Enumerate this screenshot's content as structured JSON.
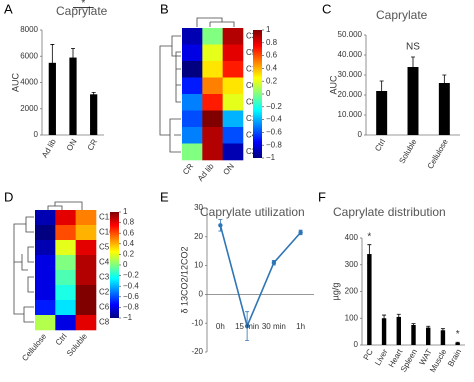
{
  "chart_data": [
    {
      "type": "bar",
      "panel": "A",
      "title": "Caprylate",
      "ylabel": "AUC",
      "categories": [
        "Ad lib",
        "ON",
        "CR"
      ],
      "values": [
        5500,
        5900,
        3100
      ],
      "errors": [
        1400,
        700,
        150
      ],
      "color": "#000000",
      "ylim": [
        0,
        8000
      ],
      "yticks": [
        0,
        2000,
        4000,
        6000,
        8000
      ],
      "annotations": [
        "*"
      ]
    },
    {
      "type": "heatmap",
      "panel": "B",
      "columns": [
        "CR",
        "Ad lib",
        "ON"
      ],
      "rows": [
        "C3",
        "C5",
        "C12",
        "C6",
        "C8",
        "C10",
        "C4",
        "C2"
      ],
      "matrix": [
        [
          -0.9,
          0.0,
          0.9
        ],
        [
          -0.8,
          0.2,
          0.8
        ],
        [
          -1,
          0.3,
          0.7
        ],
        [
          -0.7,
          0.5,
          0.3
        ],
        [
          -0.5,
          0.7,
          0.2
        ],
        [
          -0.6,
          1,
          -0.4
        ],
        [
          -0.5,
          0.9,
          -0.6
        ],
        [
          0.0,
          0.9,
          -0.9
        ]
      ],
      "clim": [
        -1,
        1
      ],
      "cticks": [
        1,
        0.8,
        0.6,
        0.4,
        0.2,
        0,
        {
          "value": -0.2,
          "label": "−0.2"
        },
        {
          "value": -0.4,
          "label": "−0.4"
        },
        {
          "value": -0.6,
          "label": "−0.6"
        },
        {
          "value": -0.8,
          "label": "−0.8"
        },
        {
          "value": -1,
          "label": "−1"
        }
      ]
    },
    {
      "type": "bar",
      "panel": "C",
      "title": "Caprylate",
      "ylabel": "AUC",
      "categories": [
        "Ctrl",
        "Soluble",
        "Cellulose"
      ],
      "values": [
        22000,
        34000,
        26000
      ],
      "errors": [
        5000,
        5000,
        4000
      ],
      "color": "#000000",
      "ylim": [
        0,
        50000
      ],
      "yticks": [
        0,
        {
          "value": 10000,
          "label": "10.000"
        },
        {
          "value": 20000,
          "label": "20.000"
        },
        {
          "value": 30000,
          "label": "30.000"
        },
        {
          "value": 40000,
          "label": "40.000"
        },
        {
          "value": 50000,
          "label": "50.000"
        }
      ],
      "annotations": [
        "NS"
      ]
    },
    {
      "type": "heatmap",
      "panel": "D",
      "columns": [
        "Cellulose",
        "Ctrl",
        "Soluble"
      ],
      "rows": [
        "C12",
        "C10",
        "C5",
        "C4",
        "C3",
        "C2",
        "C6",
        "C8"
      ],
      "matrix": [
        [
          -0.9,
          0.8,
          0.5
        ],
        [
          -1,
          0.6,
          0.4
        ],
        [
          -0.9,
          0.2,
          0.8
        ],
        [
          -0.8,
          0.0,
          0.9
        ],
        [
          -0.8,
          -0.1,
          0.9
        ],
        [
          -0.8,
          -0.2,
          1
        ],
        [
          -0.7,
          -0.3,
          1
        ],
        [
          0.1,
          -0.8,
          0.8
        ]
      ],
      "clim": [
        -1,
        1
      ],
      "cticks": [
        1,
        0.8,
        0.6,
        0.4,
        0.2,
        0,
        {
          "value": -0.2,
          "label": "−0.2"
        },
        {
          "value": -0.4,
          "label": "−0.4"
        },
        {
          "value": -0.6,
          "label": "−0.6"
        },
        {
          "value": -0.8,
          "label": "−0.8"
        },
        {
          "value": -1,
          "label": "−1"
        }
      ]
    },
    {
      "type": "line",
      "panel": "E",
      "title": "Caprylate utilization",
      "ylabel": "δ 13CO2/12CO2",
      "categories": [
        "0h",
        "15 min",
        "30 min",
        "1h"
      ],
      "values": [
        24,
        -11,
        11,
        21.5
      ],
      "errors": [
        2,
        5,
        0.8,
        0.8
      ],
      "color": "#2e75b6",
      "ylim": [
        -20,
        30
      ],
      "yticks": [
        -20,
        -10,
        0,
        10,
        20,
        30
      ]
    },
    {
      "type": "bar",
      "panel": "F",
      "title": "Caprylate distribution",
      "ylabel": "µg/g",
      "categories": [
        "PC",
        "Liver",
        "Heart",
        "Spleen",
        "WAT",
        "Muscle",
        "Brain"
      ],
      "values": [
        340,
        100,
        105,
        75,
        65,
        55,
        8
      ],
      "errors": [
        35,
        12,
        10,
        5,
        5,
        6,
        2
      ],
      "color": "#000000",
      "ylim": [
        0,
        400
      ],
      "yticks": [
        0,
        100,
        200,
        300,
        400
      ],
      "annotations": [
        "*",
        "*"
      ]
    }
  ]
}
